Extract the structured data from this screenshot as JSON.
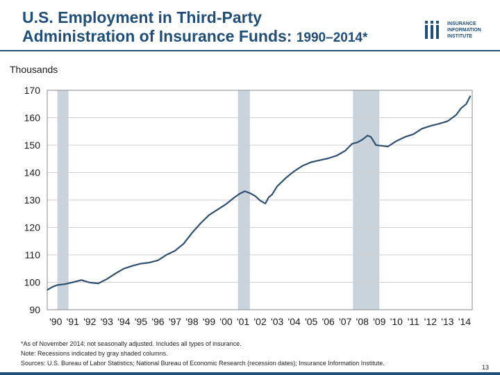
{
  "header": {
    "title_line1": "U.S. Employment in Third-Party",
    "title_line2": "Administration of Insurance Funds:",
    "title_period": "1990–2014*",
    "logo_lines": [
      "INSURANCE",
      "INFORMATION",
      "INSTITUTE"
    ],
    "accent_color": "#1f4e79"
  },
  "units_label": "Thousands",
  "chart_data": {
    "type": "line",
    "title": "U.S. Employment in Third-Party Administration of Insurance Funds: 1990–2014*",
    "ylabel": "Thousands",
    "xlabel": "",
    "ylim": [
      90,
      170
    ],
    "xlim": [
      1990,
      2014.95
    ],
    "yticks": [
      90,
      100,
      110,
      120,
      130,
      140,
      150,
      160,
      170
    ],
    "xtick_labels": [
      "'90",
      "'91",
      "'92",
      "'93",
      "'94",
      "'95",
      "'96",
      "'97",
      "'98",
      "'99",
      "'00",
      "'01",
      "'02",
      "'03",
      "'04",
      "'05",
      "'06",
      "'07",
      "'08",
      "'09",
      "'10",
      "'11",
      "'12",
      "'13",
      "'14"
    ],
    "grid": "horizontal",
    "line_color": "#2f4f6f",
    "recession_color": "#c9d3dc",
    "recessions": [
      [
        1990.6,
        1991.25
      ],
      [
        2001.2,
        2001.9
      ],
      [
        2007.95,
        2009.5
      ]
    ],
    "series": [
      {
        "x": [
          1990.0,
          1990.3,
          1990.6,
          1991.0,
          1991.5,
          1992.0,
          1992.5,
          1993.0,
          1993.5,
          1994.0,
          1994.5,
          1995.0,
          1995.5,
          1996.0,
          1996.5,
          1997.0,
          1997.5,
          1998.0,
          1998.5,
          1999.0,
          1999.5,
          2000.0,
          2000.5,
          2001.0,
          2001.3,
          2001.6,
          2001.9,
          2002.2,
          2002.5,
          2002.8,
          2003.0,
          2003.2,
          2003.5,
          2004.0,
          2004.5,
          2005.0,
          2005.5,
          2006.0,
          2006.5,
          2007.0,
          2007.5,
          2007.9,
          2008.2,
          2008.5,
          2008.8,
          2009.0,
          2009.3,
          2009.6,
          2010.0,
          2010.5,
          2011.0,
          2011.5,
          2012.0,
          2012.5,
          2013.0,
          2013.5,
          2014.0,
          2014.3,
          2014.6,
          2014.85
        ],
        "values": [
          97.2,
          98.3,
          99.0,
          99.3,
          100.0,
          100.8,
          99.9,
          99.6,
          101.2,
          103.2,
          105.0,
          106.0,
          106.8,
          107.2,
          108.0,
          110.0,
          111.5,
          114.0,
          118.0,
          121.5,
          124.5,
          126.5,
          128.5,
          131.0,
          132.3,
          133.2,
          132.5,
          131.5,
          129.8,
          128.7,
          131.0,
          132.0,
          135.0,
          138.0,
          140.5,
          142.5,
          143.8,
          144.5,
          145.2,
          146.2,
          148.0,
          150.5,
          151.0,
          152.0,
          153.5,
          153.0,
          150.0,
          149.8,
          149.5,
          151.5,
          153.0,
          154.0,
          156.0,
          157.0,
          157.8,
          158.7,
          161.0,
          163.5,
          165.0,
          168.0
        ]
      }
    ]
  },
  "notes": [
    "*As of November 2014; not seasonally adjusted. Includes all types of insurance.",
    "Note: Recessions indicated by gray shaded columns.",
    "Sources: U.S. Bureau of Labor Statistics;  National Bureau of Economic Research (recession dates); Insurance Information Institute."
  ],
  "page_number": "13"
}
